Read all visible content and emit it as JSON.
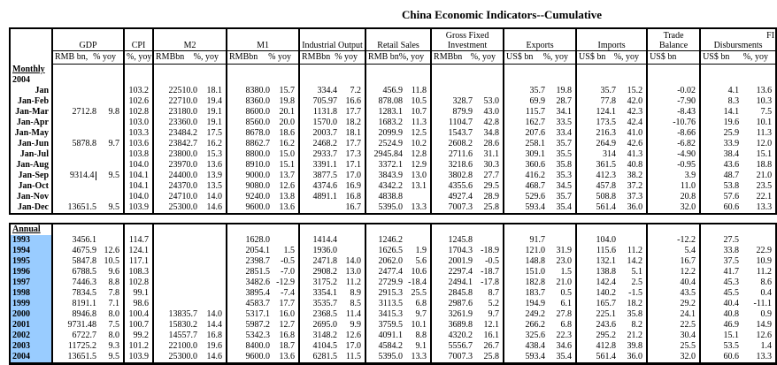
{
  "title": "China Economic Indicators--Cumulative",
  "colors": {
    "year_highlight": "#99CCFF",
    "text": "#000000",
    "border": "#000000"
  },
  "header": {
    "groups": [
      {
        "name": "gdp",
        "lines": [
          "GDP"
        ],
        "span": 2,
        "units": [
          "RMB bn,",
          "% yoy"
        ]
      },
      {
        "name": "cpi",
        "lines": [
          "CPI"
        ],
        "span": 1,
        "units": [
          "%, yoy"
        ]
      },
      {
        "name": "m2",
        "lines": [
          "M2"
        ],
        "span": 2,
        "units": [
          "RMBbn",
          "%, yoy"
        ]
      },
      {
        "name": "m1",
        "lines": [
          "M1"
        ],
        "span": 2,
        "units": [
          "RMBbn",
          "% yoy"
        ]
      },
      {
        "name": "industrial-output",
        "lines": [
          "Industrial Output"
        ],
        "span": 2,
        "units": [
          "RMBbn",
          "% yoy"
        ]
      },
      {
        "name": "retail-sales",
        "lines": [
          "Retail Sales"
        ],
        "span": 2,
        "units": [
          "RMB bn",
          "%, yoy"
        ]
      },
      {
        "name": "gross-fixed-investment",
        "lines": [
          "Gross Fixed",
          "Investment"
        ],
        "span": 2,
        "units": [
          "RMBbn",
          "%, yoy"
        ]
      },
      {
        "name": "exports",
        "lines": [
          "Exports"
        ],
        "span": 2,
        "units": [
          "US$ bn",
          "%, yoy"
        ]
      },
      {
        "name": "imports",
        "lines": [
          "Imports"
        ],
        "span": 2,
        "units": [
          "US$ bn",
          "%, yoy"
        ]
      },
      {
        "name": "trade-balance",
        "lines": [
          "Trade",
          "Balance"
        ],
        "span": 1,
        "units": [
          "US$ bn"
        ]
      },
      {
        "name": "fi-disbursments",
        "lines": [
          "FI",
          "Disbursments"
        ],
        "span": 2,
        "units": [
          "US$ bn",
          "%, yoy"
        ],
        "first_line_align": "right"
      }
    ]
  },
  "monthly": {
    "section_label": "Monthly",
    "year_label": "2004",
    "rows": [
      {
        "label": "Jan",
        "cells": [
          "",
          "",
          "103.2",
          "22510.0",
          "18.1",
          "8380.0",
          "15.7",
          "334.4",
          "7.2",
          "456.9",
          "11.8",
          "",
          "",
          "35.7",
          "19.8",
          "35.7",
          "15.2",
          "-0.02",
          "4.1",
          "13.6"
        ]
      },
      {
        "label": "Jan-Feb",
        "cells": [
          "",
          "",
          "102.6",
          "22710.0",
          "19.4",
          "8360.0",
          "19.8",
          "705.97",
          "16.6",
          "878.08",
          "10.5",
          "328.7",
          "53.0",
          "69.9",
          "28.7",
          "77.8",
          "42.0",
          "-7.90",
          "8.3",
          "10.3"
        ]
      },
      {
        "label": "Jan-Mar",
        "cells": [
          "2712.8",
          "9.8",
          "102.8",
          "23180.0",
          "19.1",
          "8600.0",
          "20.1",
          "1131.8",
          "17.7",
          "1283.1",
          "10.7",
          "879.9",
          "43.0",
          "115.7",
          "34.1",
          "124.1",
          "42.3",
          "-8.43",
          "14.1",
          "7.5"
        ]
      },
      {
        "label": "Jan-Apr",
        "cells": [
          "",
          "",
          "103.0",
          "23360.0",
          "19.1",
          "8560.0",
          "20.0",
          "1570.0",
          "18.2",
          "1683.2",
          "11.3",
          "1104.7",
          "42.8",
          "162.7",
          "33.5",
          "173.5",
          "42.4",
          "-10.76",
          "19.6",
          "10.1"
        ]
      },
      {
        "label": "Jan-May",
        "cells": [
          "",
          "",
          "103.3",
          "23484.2",
          "17.5",
          "8678.0",
          "18.6",
          "2003.7",
          "18.1",
          "2099.9",
          "12.5",
          "1543.7",
          "34.8",
          "207.6",
          "33.4",
          "216.3",
          "41.0",
          "-8.66",
          "25.9",
          "11.3"
        ]
      },
      {
        "label": "Jan-Jun",
        "cells": [
          "5878.8",
          "9.7",
          "103.6",
          "23842.7",
          "16.2",
          "8862.7",
          "16.2",
          "2468.2",
          "17.7",
          "2524.9",
          "10.2",
          "2608.2",
          "28.6",
          "258.1",
          "35.7",
          "264.9",
          "42.6",
          "-6.82",
          "33.9",
          "12.0"
        ]
      },
      {
        "label": "Jan-Jul",
        "cells": [
          "",
          "",
          "103.8",
          "23800.0",
          "15.3",
          "8800.0",
          "15.0",
          "2933.7",
          "17.3",
          "2945.84",
          "12.8",
          "2711.6",
          "31.1",
          "309.1",
          "35.5",
          "314",
          "41.3",
          "-4.90",
          "38.4",
          "15.1"
        ]
      },
      {
        "label": "Jan-Aug",
        "cells": [
          "",
          "",
          "104.0",
          "23970.0",
          "13.6",
          "8910.0",
          "15.1",
          "3391.1",
          "17.1",
          "3372.1",
          "12.9",
          "3218.6",
          "30.3",
          "360.6",
          "35.8",
          "361.5",
          "40.8",
          "-0.95",
          "43.6",
          "18.8"
        ]
      },
      {
        "label": "Jan-Sep",
        "cells": [
          "9314.4",
          "9.5",
          "104.1",
          "24400.0",
          "13.9",
          "9000.0",
          "13.7",
          "3877.5",
          "17.0",
          "3843.9",
          "13.0",
          "3802.8",
          "27.7",
          "416.2",
          "35.3",
          "412.3",
          "38.2",
          "3.9",
          "48.7",
          "21.0"
        ]
      },
      {
        "label": "Jan-Oct",
        "cells": [
          "",
          "",
          "104.1",
          "24370.0",
          "13.5",
          "9080.0",
          "12.6",
          "4374.6",
          "16.9",
          "4342.2",
          "13.1",
          "4355.6",
          "29.5",
          "468.7",
          "34.5",
          "457.8",
          "37.2",
          "11.0",
          "53.8",
          "23.5"
        ]
      },
      {
        "label": "Jan-Nov",
        "cells": [
          "",
          "",
          "104.0",
          "24710.0",
          "14.0",
          "9240.0",
          "13.8",
          "4891.1",
          "16.8",
          "4838.8",
          "",
          "4927.4",
          "28.9",
          "529.6",
          "35.7",
          "508.8",
          "37.3",
          "20.8",
          "57.6",
          "22.1"
        ]
      },
      {
        "label": "Jan-Dec",
        "cells": [
          "13651.5",
          "9.5",
          "103.9",
          "25300.0",
          "14.6",
          "9600.0",
          "13.6",
          "",
          "16.7",
          "5395.0",
          "13.3",
          "7007.3",
          "25.8",
          "593.4",
          "35.4",
          "561.4",
          "36.0",
          "32.0",
          "60.6",
          "13.3"
        ]
      }
    ]
  },
  "annual": {
    "section_label": "Annual",
    "rows": [
      {
        "label": "1993",
        "cells": [
          "3456.1",
          "",
          "114.7",
          "",
          "",
          "1628.0",
          "",
          "1414.4",
          "",
          "1246.2",
          "",
          "1245.8",
          "",
          "91.7",
          "",
          "104.0",
          "",
          "-12.2",
          "27.5",
          ""
        ]
      },
      {
        "label": "1994",
        "cells": [
          "4675.9",
          "12.6",
          "124.1",
          "",
          "",
          "2054.1",
          "1.5",
          "1936.0",
          "",
          "1626.5",
          "1.9",
          "1704.3",
          "-18.9",
          "121.0",
          "31.9",
          "115.6",
          "11.2",
          "5.4",
          "33.8",
          "22.9"
        ]
      },
      {
        "label": "1995",
        "cells": [
          "5847.8",
          "10.5",
          "117.1",
          "",
          "",
          "2398.7",
          "-0.5",
          "2471.8",
          "14.0",
          "2062.0",
          "5.6",
          "2001.9",
          "-0.5",
          "148.8",
          "23.0",
          "132.1",
          "14.2",
          "16.7",
          "37.5",
          "10.9"
        ]
      },
      {
        "label": "1996",
        "cells": [
          "6788.5",
          "9.6",
          "108.3",
          "",
          "",
          "2851.5",
          "-7.0",
          "2908.2",
          "13.0",
          "2477.4",
          "10.6",
          "2297.4",
          "-18.7",
          "151.0",
          "1.5",
          "138.8",
          "5.1",
          "12.2",
          "41.7",
          "11.2"
        ]
      },
      {
        "label": "1997",
        "cells": [
          "7446.3",
          "8.8",
          "102.8",
          "",
          "",
          "3482.6",
          "-12.9",
          "3175.2",
          "11.2",
          "2729.9",
          "-18.4",
          "2494.1",
          "-17.8",
          "182.8",
          "21.0",
          "142.4",
          "2.5",
          "40.4",
          "45.3",
          "8.6"
        ]
      },
      {
        "label": "1998",
        "cells": [
          "7834.5",
          "7.8",
          "99.1",
          "",
          "",
          "3895.4",
          "-7.4",
          "3354.1",
          "8.9",
          "2915.3",
          "25.5",
          "2845.8",
          "8.7",
          "183.7",
          "0.5",
          "140.2",
          "-1.5",
          "43.5",
          "45.5",
          "0.4"
        ]
      },
      {
        "label": "1999",
        "cells": [
          "8191.1",
          "7.1",
          "98.6",
          "",
          "",
          "4583.7",
          "17.7",
          "3535.7",
          "8.5",
          "3113.5",
          "6.8",
          "2987.6",
          "5.2",
          "194.9",
          "6.1",
          "165.7",
          "18.2",
          "29.2",
          "40.4",
          "-11.1"
        ]
      },
      {
        "label": "2000",
        "cells": [
          "8946.8",
          "8.0",
          "100.4",
          "13835.7",
          "14.0",
          "5317.1",
          "16.0",
          "2368.5",
          "11.4",
          "3415.3",
          "9.7",
          "3261.9",
          "9.7",
          "249.2",
          "27.8",
          "225.1",
          "35.8",
          "24.1",
          "40.8",
          "0.9"
        ]
      },
      {
        "label": "2001",
        "cells": [
          "9731.48",
          "7.5",
          "100.7",
          "15830.2",
          "14.4",
          "5987.2",
          "12.7",
          "2695.0",
          "9.9",
          "3759.5",
          "10.1",
          "3689.8",
          "12.1",
          "266.2",
          "6.8",
          "243.6",
          "8.2",
          "22.5",
          "46.9",
          "14.9"
        ]
      },
      {
        "label": "2002",
        "cells": [
          "6722.7",
          "8.0",
          "99.2",
          "14557.7",
          "16.8",
          "5342.3",
          "16.8",
          "3148.2",
          "12.6",
          "4091.1",
          "8.8",
          "4320.2",
          "16.1",
          "325.6",
          "22.3",
          "295.2",
          "21.2",
          "30.4",
          "15.1",
          "12.6"
        ]
      },
      {
        "label": "2003",
        "cells": [
          "11725.2",
          "9.3",
          "101.2",
          "22100.0",
          "19.6",
          "8400.0",
          "18.7",
          "4104.5",
          "17.0",
          "4584.2",
          "9.1",
          "5556.7",
          "26.7",
          "438.4",
          "34.6",
          "412.8",
          "39.8",
          "25.5",
          "53.5",
          "1.4"
        ]
      },
      {
        "label": "2004",
        "cells": [
          "13651.5",
          "9.5",
          "103.9",
          "25300.0",
          "14.6",
          "9600.0",
          "13.6",
          "6281.5",
          "11.5",
          "5395.0",
          "13.3",
          "7007.3",
          "25.8",
          "593.4",
          "35.4",
          "561.4",
          "36.0",
          "32.0",
          "60.6",
          "13.3"
        ]
      }
    ]
  },
  "cursor": {
    "section": "monthly",
    "row_index": 8,
    "cell_index": 0
  }
}
